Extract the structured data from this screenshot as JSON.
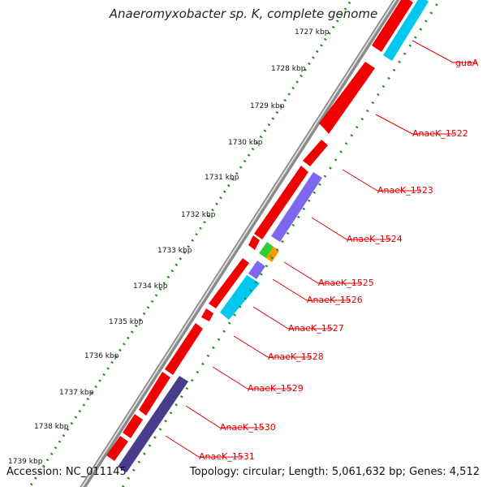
{
  "title": "Anaeromyxobacter sp. K, complete genome",
  "footer": {
    "accession": "Accession: NC_011145",
    "summary": "Topology: circular; Length: 5,061,632 bp; Genes: 4,512"
  },
  "colors": {
    "backbone": "#7a7a7a",
    "gene_red": "#f00000",
    "gene_purple": "#7b68ee",
    "gene_cyan": "#00c8f0",
    "gene_navy": "#483d8b",
    "gene_green": "#33cc33",
    "gene_orange": "#ff9900",
    "label": "#e00000",
    "dotted_track": "#1a8c1a"
  },
  "kbp_ticks": [
    "1727 kbp",
    "1728 kbp",
    "1729 kbp",
    "1730 kbp",
    "1731 kbp",
    "1732 kbp",
    "1733 kbp",
    "1734 kbp",
    "1735 kbp",
    "1736 kbp",
    "1737 kbp",
    "1738 kbp",
    "1739 kbp"
  ],
  "gene_labels": [
    "guaA",
    "AnaeK_1522",
    "AnaeK_1523",
    "AnaeK_1524",
    "AnaeK_1525",
    "AnaeK_1526",
    "AnaeK_1527",
    "AnaeK_1528",
    "AnaeK_1529",
    "AnaeK_1530",
    "AnaeK_1531"
  ]
}
